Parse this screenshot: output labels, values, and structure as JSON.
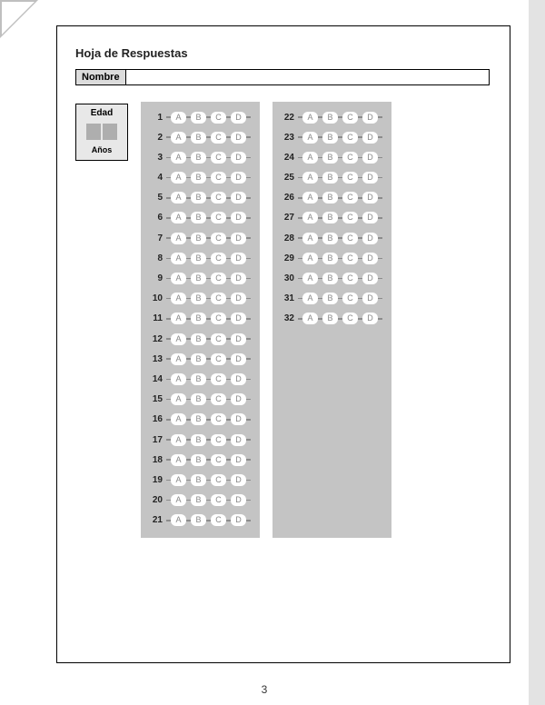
{
  "title": "Hoja de Respuestas",
  "name_label": "Nombre",
  "edad": {
    "title": "Edad",
    "anos": "Años"
  },
  "options": [
    "A",
    "B",
    "C",
    "D"
  ],
  "col1_start": 1,
  "col1_end": 21,
  "col2_start": 22,
  "col2_end": 32,
  "page_number": "3",
  "colors": {
    "col_bg": "#c4c4c4",
    "frame": "#000000",
    "gutter": "#e3e3e3",
    "label_bg": "#dcdcdc"
  }
}
